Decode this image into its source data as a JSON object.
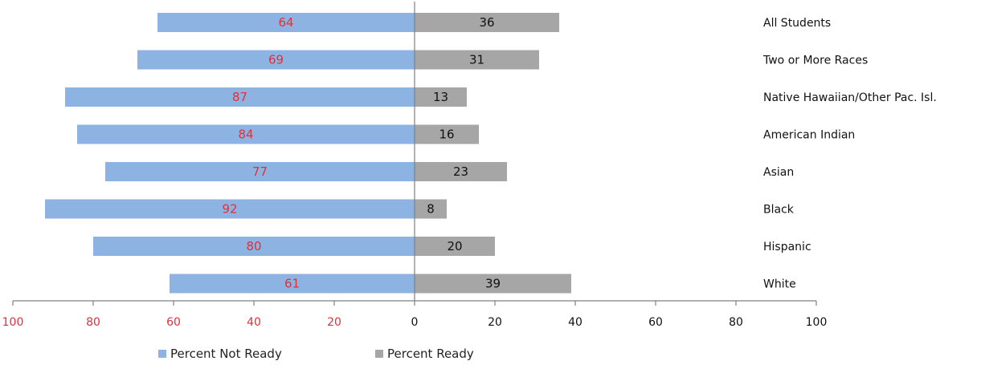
{
  "chart_data": {
    "type": "bar",
    "orientation": "horizontal-diverging",
    "categories": [
      "All Students",
      "Two or More Races",
      "Native Hawaiian/Other Pac. Isl.",
      "American Indian",
      "Asian",
      "Black",
      "Hispanic",
      "White"
    ],
    "series": [
      {
        "name": "Percent Not Ready",
        "direction": "left",
        "color": "#8db3e2",
        "label_color": "#e0303a",
        "values": [
          64,
          69,
          87,
          84,
          77,
          92,
          80,
          61
        ]
      },
      {
        "name": "Percent Ready",
        "direction": "right",
        "color": "#a6a6a6",
        "label_color": "#111111",
        "values": [
          36,
          31,
          13,
          16,
          23,
          8,
          20,
          39
        ]
      }
    ],
    "axis": {
      "left_ticks": [
        "100",
        "80",
        "60",
        "40",
        "20"
      ],
      "right_ticks": [
        "0",
        "20",
        "40",
        "60",
        "80",
        "100"
      ],
      "left_tick_color": "#e0303a",
      "right_tick_color": "#111111",
      "range": [
        -100,
        100
      ]
    },
    "legend": {
      "placement": "bottom-left",
      "entries": [
        "Percent Not Ready",
        "Percent Ready"
      ]
    },
    "grid": false
  }
}
